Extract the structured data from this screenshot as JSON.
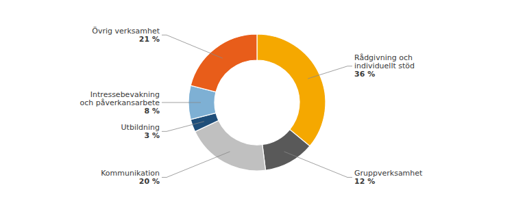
{
  "chart_data": {
    "type": "donut",
    "categories": [
      "Rådgivning och\nindividuellt stöd",
      "Gruppverksamhet",
      "Kommunikation",
      "Utbildning",
      "Intressebevakning\noch påverkansarbete",
      "Övrig verksamhet"
    ],
    "values": [
      36,
      12,
      20,
      3,
      8,
      21
    ],
    "value_labels": [
      "36 %",
      "12 %",
      "20 %",
      "3 %",
      "8 %",
      "21 %"
    ],
    "colors": [
      "#F5A800",
      "#595959",
      "#C0C0C0",
      "#1F4E79",
      "#7EB0D4",
      "#E85D1A"
    ],
    "data_labels": true
  }
}
